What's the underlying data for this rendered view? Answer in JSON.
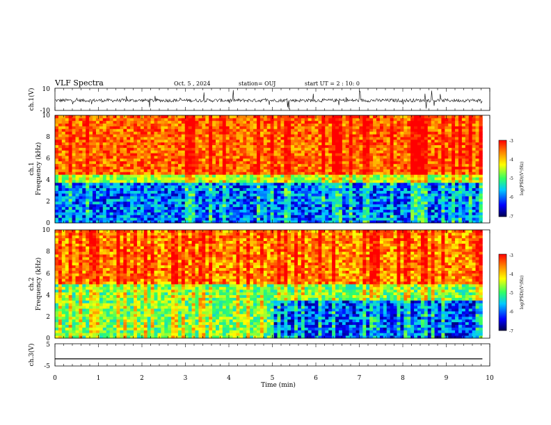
{
  "header": {
    "title": "VLF Spectra",
    "date": "Oct. 5 , 2024",
    "station": "station= OUJ",
    "start": "start  UT =  2 : 10: 0"
  },
  "chart_data": [
    {
      "type": "line",
      "name": "ch1-waveform",
      "ylabel": "ch.1(V)",
      "ylim": [
        -10,
        10
      ],
      "yticks": [
        "10",
        "-10"
      ],
      "description_values": {
        "mean": -1,
        "noise_amplitude": 3,
        "spike_min": -9,
        "spike_max": 9
      }
    },
    {
      "type": "heatmap",
      "name": "ch1-spectrogram",
      "ylabel_line1": "ch.1",
      "ylabel_line2": "Frequency (kHz)",
      "ylim": [
        0,
        10
      ],
      "yticks": [
        "0",
        "2",
        "4",
        "6",
        "8",
        "10"
      ],
      "xlim": [
        0,
        9.83
      ],
      "colorbar": {
        "label": "log(PSD)(V²/Hz)",
        "range": [
          -7,
          -3
        ],
        "ticks": [
          "-3",
          "-4",
          "-5",
          "-6",
          "-7"
        ]
      },
      "boundary_khz": 4.5
    },
    {
      "type": "heatmap",
      "name": "ch2-spectrogram",
      "ylabel_line1": "ch.2",
      "ylabel_line2": "Frequency (kHz)",
      "ylim": [
        0,
        10
      ],
      "yticks": [
        "0",
        "2",
        "4",
        "6",
        "8",
        "10"
      ],
      "xlim": [
        0,
        9.83
      ],
      "colorbar": {
        "label": "log(PSD)(V²/Hz)",
        "range": [
          -7,
          -3
        ],
        "ticks": [
          "-3",
          "-4",
          "-5",
          "-6",
          "-7"
        ]
      },
      "regime_change_min": 5.05
    },
    {
      "type": "line",
      "name": "ch3-waveform",
      "ylabel": "ch.3(V)",
      "ylim": [
        -5,
        5
      ],
      "yticks": [
        "5",
        "-5"
      ],
      "x": [
        0,
        9.83
      ],
      "y": [
        -1.8,
        -1.8
      ]
    }
  ],
  "xaxis": {
    "label": "Time  (min)",
    "range": [
      0,
      10
    ],
    "ticks": [
      "0",
      "1",
      "2",
      "3",
      "4",
      "5",
      "6",
      "7",
      "8",
      "9",
      "10"
    ]
  },
  "colors": {
    "axis": "#000000",
    "trace": "#000000",
    "colormap": [
      "#000050",
      "#0000ff",
      "#00c8ff",
      "#32ff64",
      "#ffff00",
      "#ff8000",
      "#ff0000"
    ]
  }
}
